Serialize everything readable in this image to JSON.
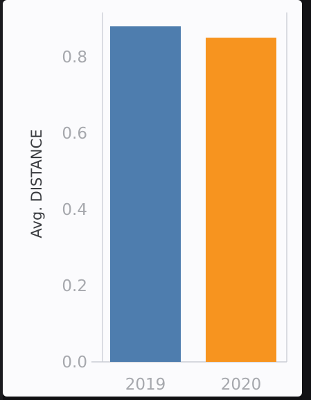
{
  "chart_data": {
    "type": "bar",
    "categories": [
      "2019",
      "2020"
    ],
    "values": [
      0.88,
      0.85
    ],
    "colors": [
      "#4e7dae",
      "#f7941f"
    ],
    "ylabel": "Avg. DISTANCE",
    "xlabel": "",
    "yticks": [
      "0.0",
      "0.2",
      "0.4",
      "0.6",
      "0.8"
    ],
    "ylim": [
      0,
      0.9
    ],
    "grid": false,
    "legend": "none"
  }
}
